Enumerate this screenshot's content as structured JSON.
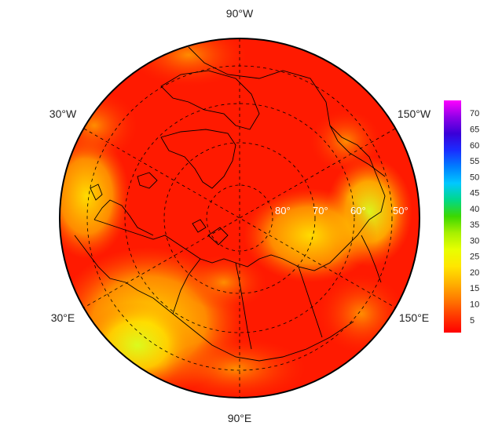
{
  "map": {
    "projection": "north-polar-stereographic",
    "longitude_labels": {
      "top": "90°W",
      "upper_left": "30°W",
      "upper_right": "150°W",
      "lower_left": "30°E",
      "lower_right": "150°E",
      "bottom": "90°E"
    },
    "latitude_labels": [
      "80°",
      "70°",
      "60°",
      "50°"
    ],
    "grid": true,
    "colors": {
      "ocean_background": "#ff1a00",
      "hot_spot_yellow": "#ffe600",
      "hot_spot_orange": "#ff9a00",
      "coastline": "#000000",
      "grid_line": "#000000",
      "frame": "#000000"
    }
  },
  "colorbar": {
    "tick_labels": [
      "5",
      "10",
      "15",
      "20",
      "25",
      "30",
      "35",
      "40",
      "45",
      "50",
      "55",
      "60",
      "65",
      "70"
    ],
    "min": 1,
    "max": 74,
    "colors": [
      "#ff0000",
      "#ff3a00",
      "#ff7a00",
      "#ffb300",
      "#ffe600",
      "#e8ff00",
      "#a8f000",
      "#3cd800",
      "#00d88a",
      "#00c8ff",
      "#007eff",
      "#1a2cff",
      "#3a00d8",
      "#9000e8",
      "#ff00ff"
    ]
  }
}
